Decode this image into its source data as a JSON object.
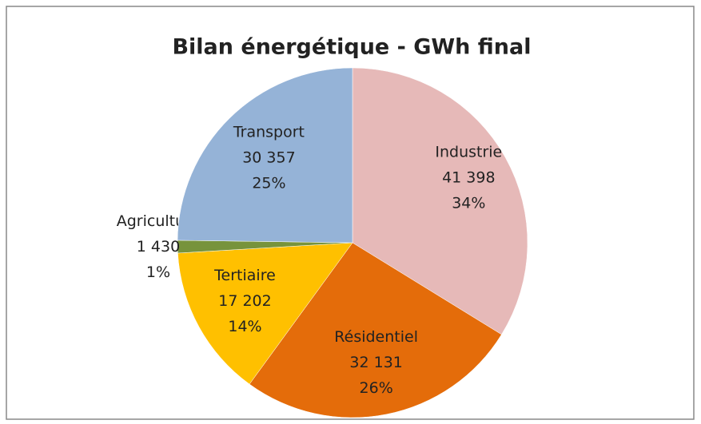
{
  "chart_data": {
    "type": "pie",
    "title": "Bilan énergétique - GWh final",
    "categories": [
      "Industrie",
      "Résidentiel",
      "Tertiaire",
      "Agriculture",
      "Transport"
    ],
    "values": [
      41398,
      32131,
      17202,
      1430,
      30357
    ],
    "value_labels": [
      "41 398",
      "32 131",
      "17 202",
      "1 430",
      "30 357"
    ],
    "percent_labels": [
      "34%",
      "26%",
      "14%",
      "1%",
      "25%"
    ],
    "colors": [
      "#e6b9b8",
      "#e46c0a",
      "#ffc000",
      "#77933c",
      "#95b3d7"
    ]
  }
}
